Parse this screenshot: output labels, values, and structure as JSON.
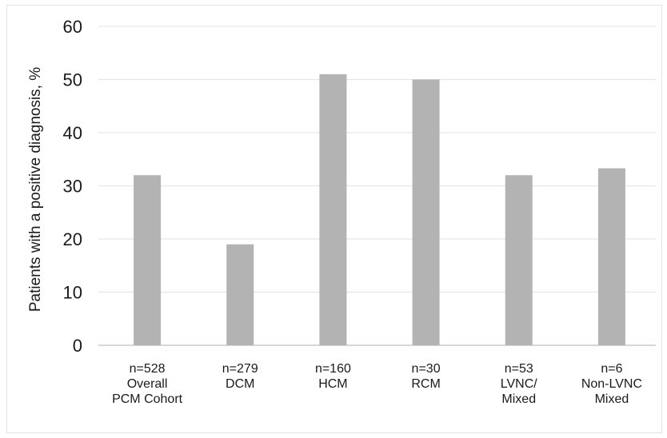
{
  "chart_data": {
    "type": "bar",
    "ylabel": "Patients with a positive diagnosis, %",
    "ylim": [
      0,
      60
    ],
    "yticks": [
      "0",
      "10",
      "20",
      "30",
      "40",
      "50",
      "60"
    ],
    "grid": true,
    "categories": [
      [
        "n=528",
        "Overall",
        "PCM Cohort"
      ],
      [
        "n=279",
        "DCM"
      ],
      [
        "n=160",
        "HCM"
      ],
      [
        "n=30",
        "RCM"
      ],
      [
        "n=53",
        "LVNC/",
        "Mixed"
      ],
      [
        "n=6",
        "Non-LVNC",
        "Mixed"
      ]
    ],
    "values": [
      32,
      19,
      51,
      50,
      32,
      33.3
    ],
    "bar_color": "#b3b3b3",
    "grid_color": "#e6e6e6"
  }
}
